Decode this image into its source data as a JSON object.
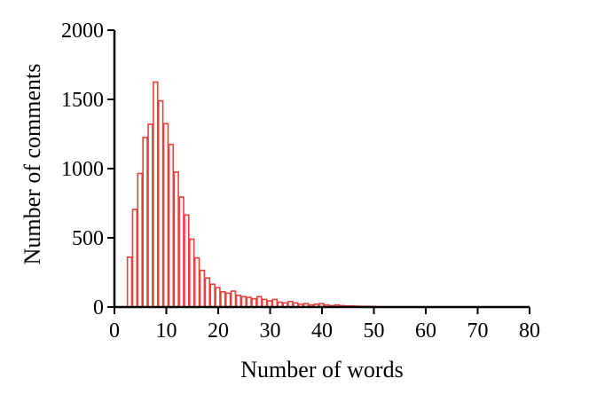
{
  "chart_data": {
    "type": "bar",
    "xlabel": "Number of words",
    "ylabel": "Number of comments",
    "xlim": [
      0,
      80
    ],
    "ylim": [
      0,
      2000
    ],
    "xticks": [
      0,
      10,
      20,
      30,
      40,
      50,
      60,
      70,
      80
    ],
    "yticks": [
      0,
      500,
      1000,
      1500,
      2000
    ],
    "grid": false,
    "bar_color": "#e8403a",
    "bins": [
      3,
      4,
      5,
      6,
      7,
      8,
      9,
      10,
      11,
      12,
      13,
      14,
      15,
      16,
      17,
      18,
      19,
      20,
      21,
      22,
      23,
      24,
      25,
      26,
      27,
      28,
      29,
      30,
      31,
      32,
      33,
      34,
      35,
      36,
      37,
      38,
      39,
      40,
      41,
      42,
      43,
      44,
      45,
      46,
      47,
      48,
      49,
      50
    ],
    "values": [
      360,
      705,
      965,
      1225,
      1320,
      1625,
      1490,
      1325,
      1175,
      975,
      795,
      665,
      490,
      355,
      265,
      210,
      165,
      140,
      110,
      100,
      115,
      85,
      75,
      70,
      60,
      75,
      55,
      45,
      55,
      35,
      30,
      40,
      30,
      20,
      25,
      15,
      20,
      25,
      15,
      10,
      15,
      10,
      8,
      8,
      6,
      5,
      5,
      4
    ]
  }
}
